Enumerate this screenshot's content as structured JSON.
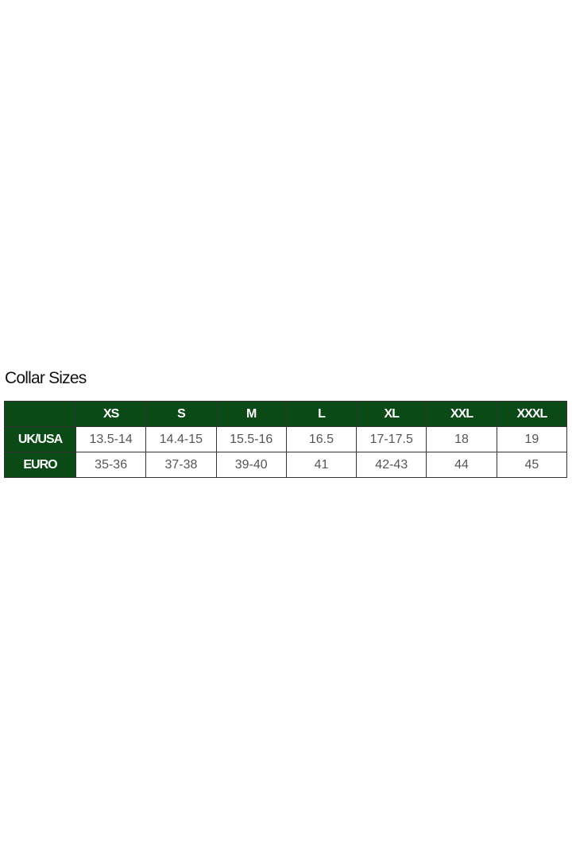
{
  "title": "Collar Sizes",
  "colors": {
    "header_bg": "#0b4a17",
    "header_text": "#ffffff"
  },
  "table": {
    "columns": [
      "",
      "XS",
      "S",
      "M",
      "L",
      "XL",
      "XXL",
      "XXXL"
    ],
    "rows": [
      {
        "label": "UK/USA",
        "values": [
          "13.5-14",
          "14.4-15",
          "15.5-16",
          "16.5",
          "17-17.5",
          "18",
          "19"
        ]
      },
      {
        "label": "EURO",
        "values": [
          "35-36",
          "37-38",
          "39-40",
          "41",
          "42-43",
          "44",
          "45"
        ]
      }
    ]
  }
}
